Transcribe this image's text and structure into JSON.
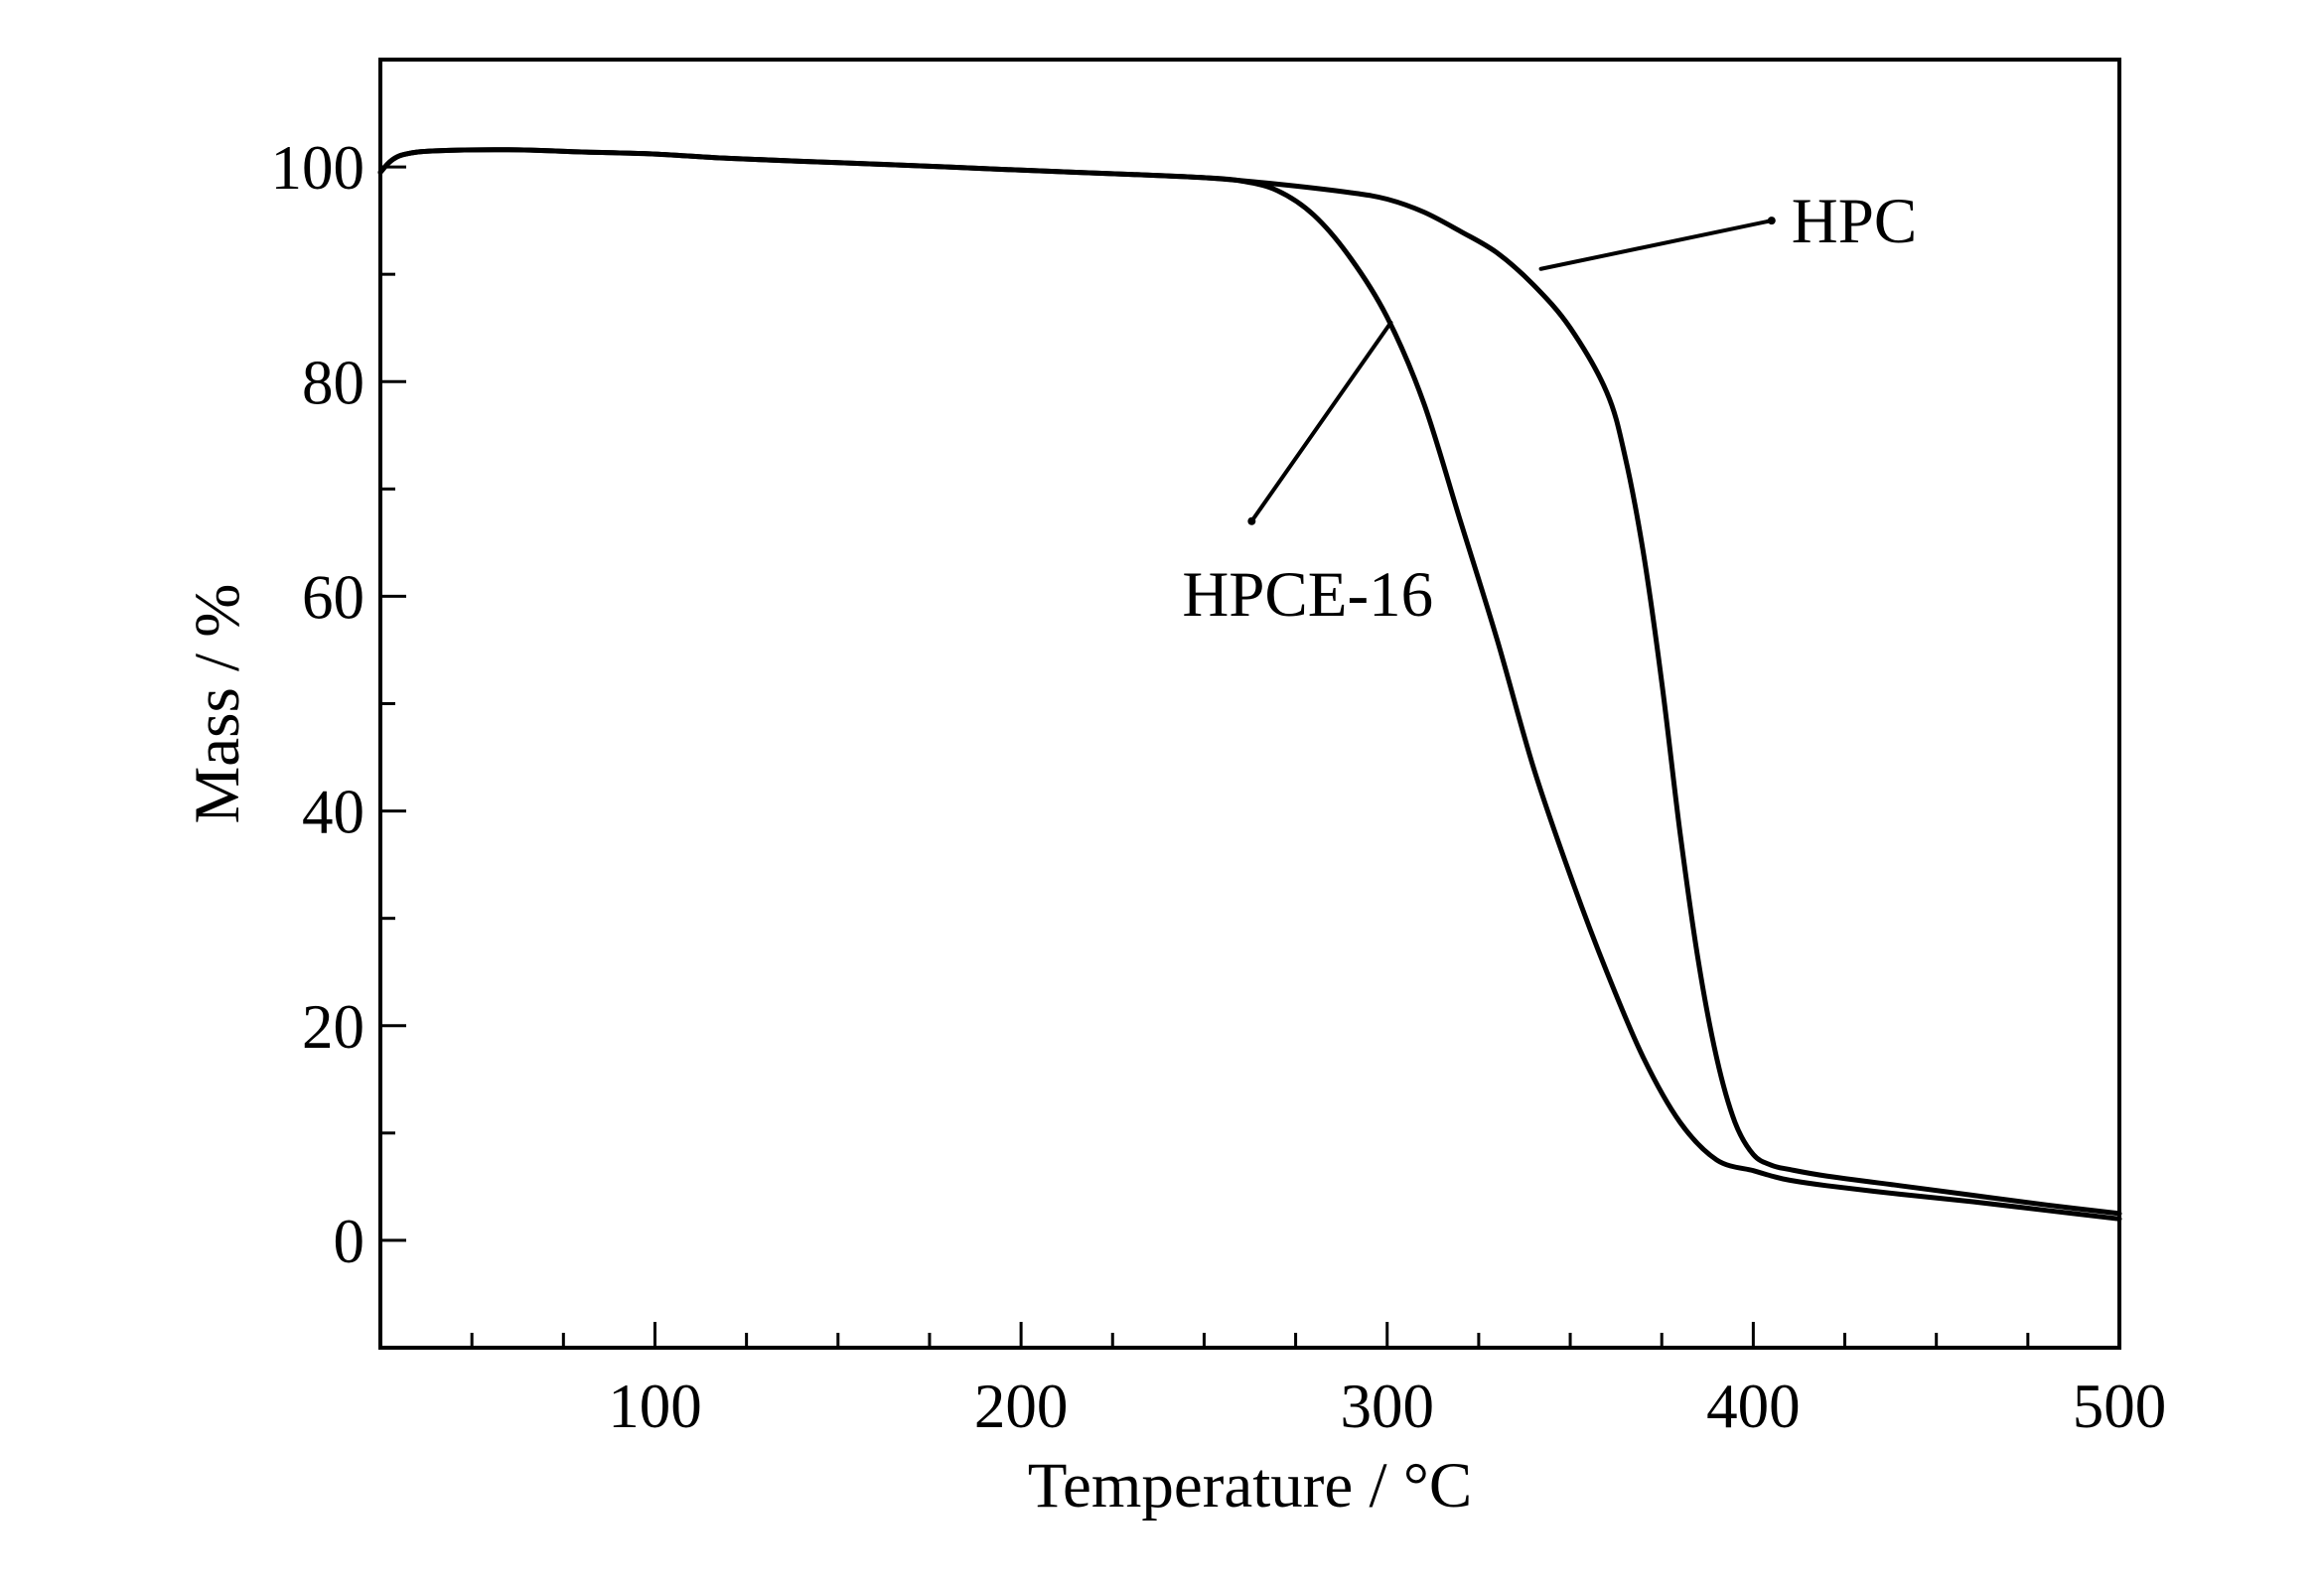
{
  "chart_data": {
    "type": "line",
    "title": "",
    "xlabel": "Temperature / °C",
    "ylabel": "Mass / %",
    "xlim": [
      25,
      500
    ],
    "ylim": [
      -10,
      110
    ],
    "x_ticks": [
      100,
      200,
      300,
      400,
      500
    ],
    "y_ticks": [
      0,
      20,
      40,
      60,
      80,
      100
    ],
    "grid": false,
    "legend": "none",
    "line_color": "#000000",
    "series": [
      {
        "name": "HPC",
        "x": [
          25,
          28,
          32,
          40,
          60,
          80,
          100,
          120,
          150,
          180,
          200,
          230,
          250,
          270,
          290,
          300,
          310,
          320,
          330,
          340,
          350,
          360,
          365,
          370,
          375,
          380,
          385,
          390,
          395,
          400,
          405,
          410,
          420,
          440,
          460,
          480,
          500
        ],
        "y": [
          99.5,
          100.6,
          101.2,
          101.5,
          101.6,
          101.4,
          101.2,
          100.8,
          100.4,
          100.0,
          99.7,
          99.3,
          99.0,
          98.4,
          97.6,
          97.0,
          95.8,
          94.0,
          92.0,
          89.0,
          85.0,
          79.0,
          73.0,
          64.0,
          52.0,
          38.0,
          26.0,
          17.0,
          11.0,
          8.0,
          7.0,
          6.6,
          6.0,
          5.1,
          4.2,
          3.3,
          2.5
        ]
      },
      {
        "name": "HPCE-16",
        "x": [
          25,
          28,
          32,
          40,
          60,
          80,
          100,
          120,
          150,
          180,
          200,
          230,
          250,
          260,
          270,
          280,
          290,
          300,
          310,
          320,
          330,
          340,
          350,
          360,
          370,
          380,
          390,
          400,
          405,
          410,
          420,
          440,
          460,
          480,
          500
        ],
        "y": [
          99.5,
          100.6,
          101.2,
          101.5,
          101.6,
          101.4,
          101.2,
          100.8,
          100.4,
          100.0,
          99.7,
          99.3,
          99.0,
          98.7,
          97.8,
          95.5,
          91.5,
          86.0,
          78.0,
          67.0,
          56.0,
          44.0,
          34.0,
          25.0,
          17.0,
          11.0,
          7.5,
          6.5,
          6.0,
          5.6,
          5.1,
          4.3,
          3.6,
          2.8,
          2.0
        ]
      }
    ],
    "annotations": [
      {
        "text": "HPC",
        "pointer_from": [
          405,
          95
        ],
        "pointer_to": [
          342,
          90.5
        ]
      },
      {
        "text": "HPCE-16",
        "pointer_from": [
          263,
          67
        ],
        "pointer_to": [
          301,
          85.5
        ]
      }
    ]
  }
}
